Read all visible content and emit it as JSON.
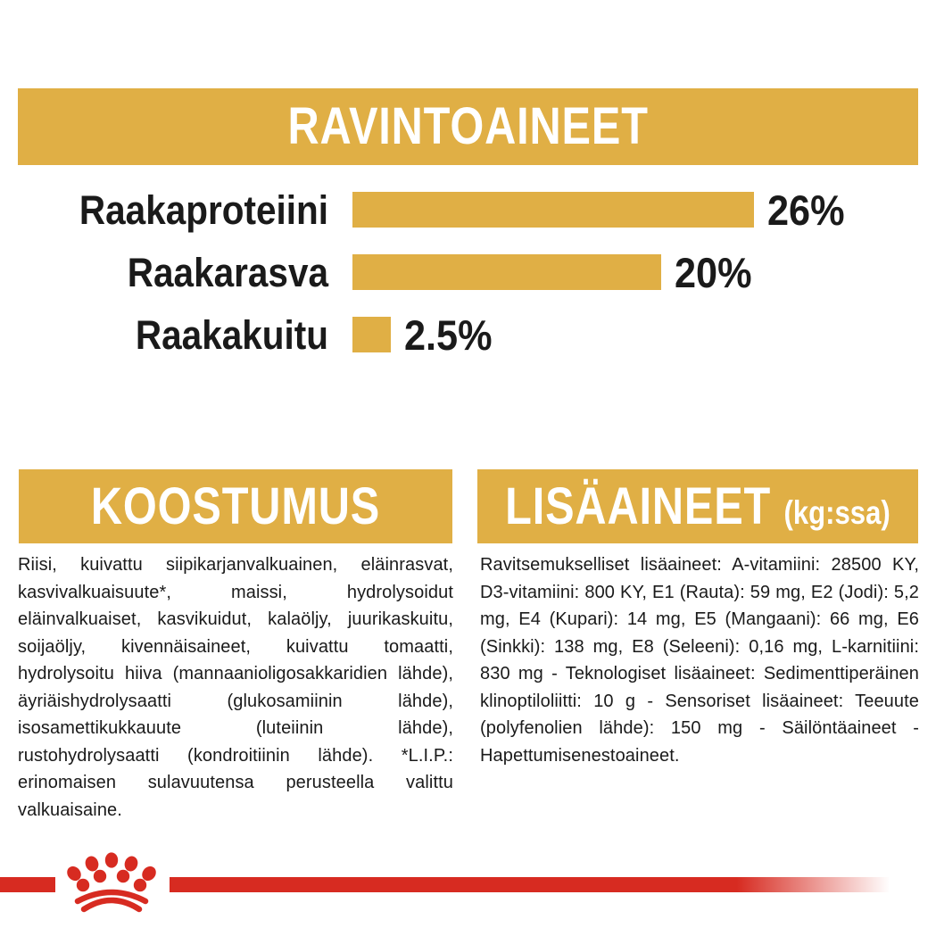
{
  "colors": {
    "gold": "#E0AF45",
    "red": "#D72B21",
    "ink": "#1A1A1A",
    "paper": "#FFFFFF"
  },
  "header": {
    "title": "RAVINTOAINEET"
  },
  "chart_data": {
    "type": "bar",
    "orientation": "horizontal",
    "title": "RAVINTOAINEET",
    "categories": [
      "Raakaproteiini",
      "Raakarasva",
      "Raakakuitu"
    ],
    "values": [
      26,
      20,
      2.5
    ],
    "value_labels": [
      "26%",
      "20%",
      "2.5%"
    ],
    "unit": "%",
    "bar_color": "#E0AF45",
    "xlim": [
      0,
      26
    ],
    "grid": false,
    "legend": false
  },
  "composition": {
    "title": "KOOSTUMUS",
    "body": "Riisi, kuivattu siipikarjanvalkuainen, eläinrasvat, kasvivalkuaisuute*, maissi, hydrolysoidut eläinvalkuaiset, kasvikuidut, kalaöljy, juurikaskuitu, soijaöljy, kivennäisaineet, kuivattu tomaatti, hydrolysoitu hiiva (mannaanioligosakkaridien lähde), äyriäishydrolysaatti (glukosamiinin lähde), isosamettikukkauute (luteiinin lähde), rustohydrolysaatti (kondroitiinin lähde). *L.I.P.: erinomaisen sulavuutensa perusteella valittu valkuaisaine."
  },
  "additives": {
    "title": "LISÄAINEET",
    "subtitle": "(kg:ssa)",
    "body": "Ravitsemukselliset lisäaineet: A-vitamiini: 28500 KY, D3-vitamiini: 800 KY, E1 (Rauta): 59 mg, E2 (Jodi): 5,2 mg, E4 (Kupari): 14 mg, E5 (Mangaani): 66 mg, E6 (Sinkki): 138 mg, E8 (Seleeni): 0,16 mg, L-karnitiini: 830 mg - Teknologiset lisäaineet: Sedimenttiperäinen klinoptiloliitti: 10 g - Sensoriset lisäaineet: Teeuute (polyfenolien lähde): 150 mg - Säilöntäaineet - Hapettumisenestoaineet."
  },
  "footer": {
    "logo": "royal-canin-crown-paw"
  }
}
